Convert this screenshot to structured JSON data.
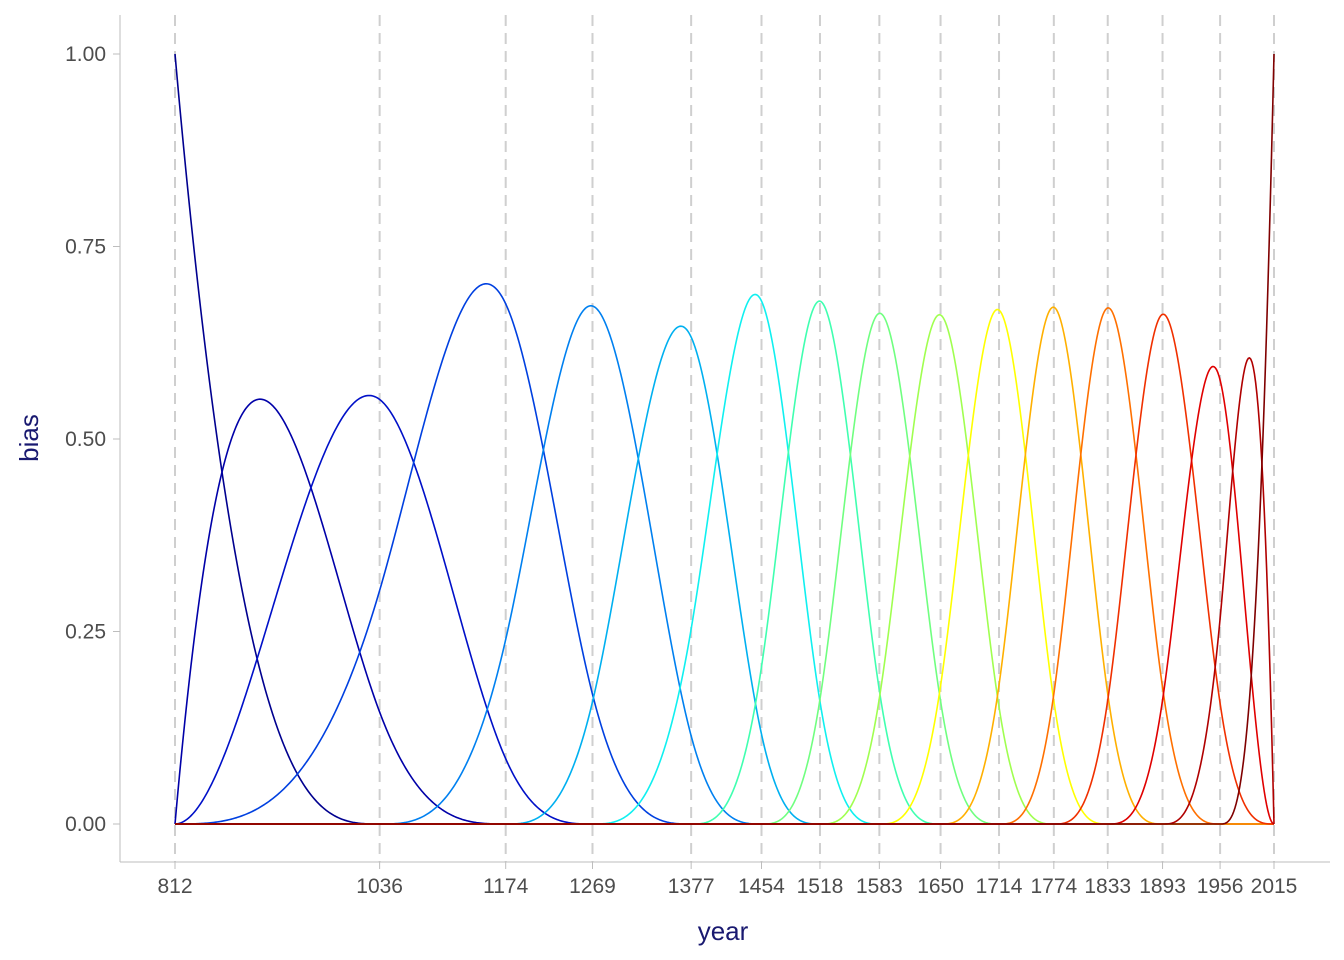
{
  "chart_data": {
    "type": "line",
    "xlabel": "year",
    "ylabel": "bias",
    "xlim": [
      812,
      2015
    ],
    "ylim": [
      0,
      1
    ],
    "x_ticks": [
      812,
      1036,
      1174,
      1269,
      1377,
      1454,
      1518,
      1583,
      1650,
      1714,
      1774,
      1833,
      1893,
      1956,
      2015
    ],
    "x_tick_labels": [
      "812",
      "1036",
      "1174",
      "1269",
      "1377",
      "1454",
      "1518",
      "1583",
      "1650",
      "1714",
      "1774",
      "1833",
      "1893",
      "1956",
      "2015"
    ],
    "y_ticks": [
      0,
      0.25,
      0.5,
      0.75,
      1
    ],
    "y_tick_labels": [
      "0.00",
      "0.25",
      "0.50",
      "0.75",
      "1.00"
    ],
    "knots_dashed_lines": [
      812,
      1036,
      1174,
      1269,
      1377,
      1454,
      1518,
      1583,
      1650,
      1714,
      1774,
      1833,
      1893,
      1956,
      2015
    ],
    "grid": false,
    "basis_degree": 3,
    "series": [
      {
        "color": "#00008F",
        "peak_x": 812,
        "peak_y": 1.0
      },
      {
        "color": "#0000A8",
        "peak_x": 905,
        "peak_y": 0.55
      },
      {
        "color": "#0010C8",
        "peak_x": 1028,
        "peak_y": 0.555
      },
      {
        "color": "#0040E0",
        "peak_x": 1153,
        "peak_y": 0.7
      },
      {
        "color": "#0080F0",
        "peak_x": 1268,
        "peak_y": 0.672
      },
      {
        "color": "#00B0F0",
        "peak_x": 1367,
        "peak_y": 0.645
      },
      {
        "color": "#10F0F0",
        "peak_x": 1452,
        "peak_y": 0.687
      },
      {
        "color": "#40FFB0",
        "peak_x": 1517,
        "peak_y": 0.678
      },
      {
        "color": "#70FF80",
        "peak_x": 1584,
        "peak_y": 0.665
      },
      {
        "color": "#A0FF50",
        "peak_x": 1650,
        "peak_y": 0.662
      },
      {
        "color": "#FFFF00",
        "peak_x": 1713,
        "peak_y": 0.667
      },
      {
        "color": "#FFB000",
        "peak_x": 1772,
        "peak_y": 0.67
      },
      {
        "color": "#FF7000",
        "peak_x": 1832,
        "peak_y": 0.67
      },
      {
        "color": "#F03000",
        "peak_x": 1892,
        "peak_y": 0.662
      },
      {
        "color": "#E00000",
        "peak_x": 1947,
        "peak_y": 0.593
      },
      {
        "color": "#B00000",
        "peak_x": 1987,
        "peak_y": 0.603
      },
      {
        "color": "#800000",
        "peak_x": 2015,
        "peak_y": 1.0
      }
    ]
  }
}
